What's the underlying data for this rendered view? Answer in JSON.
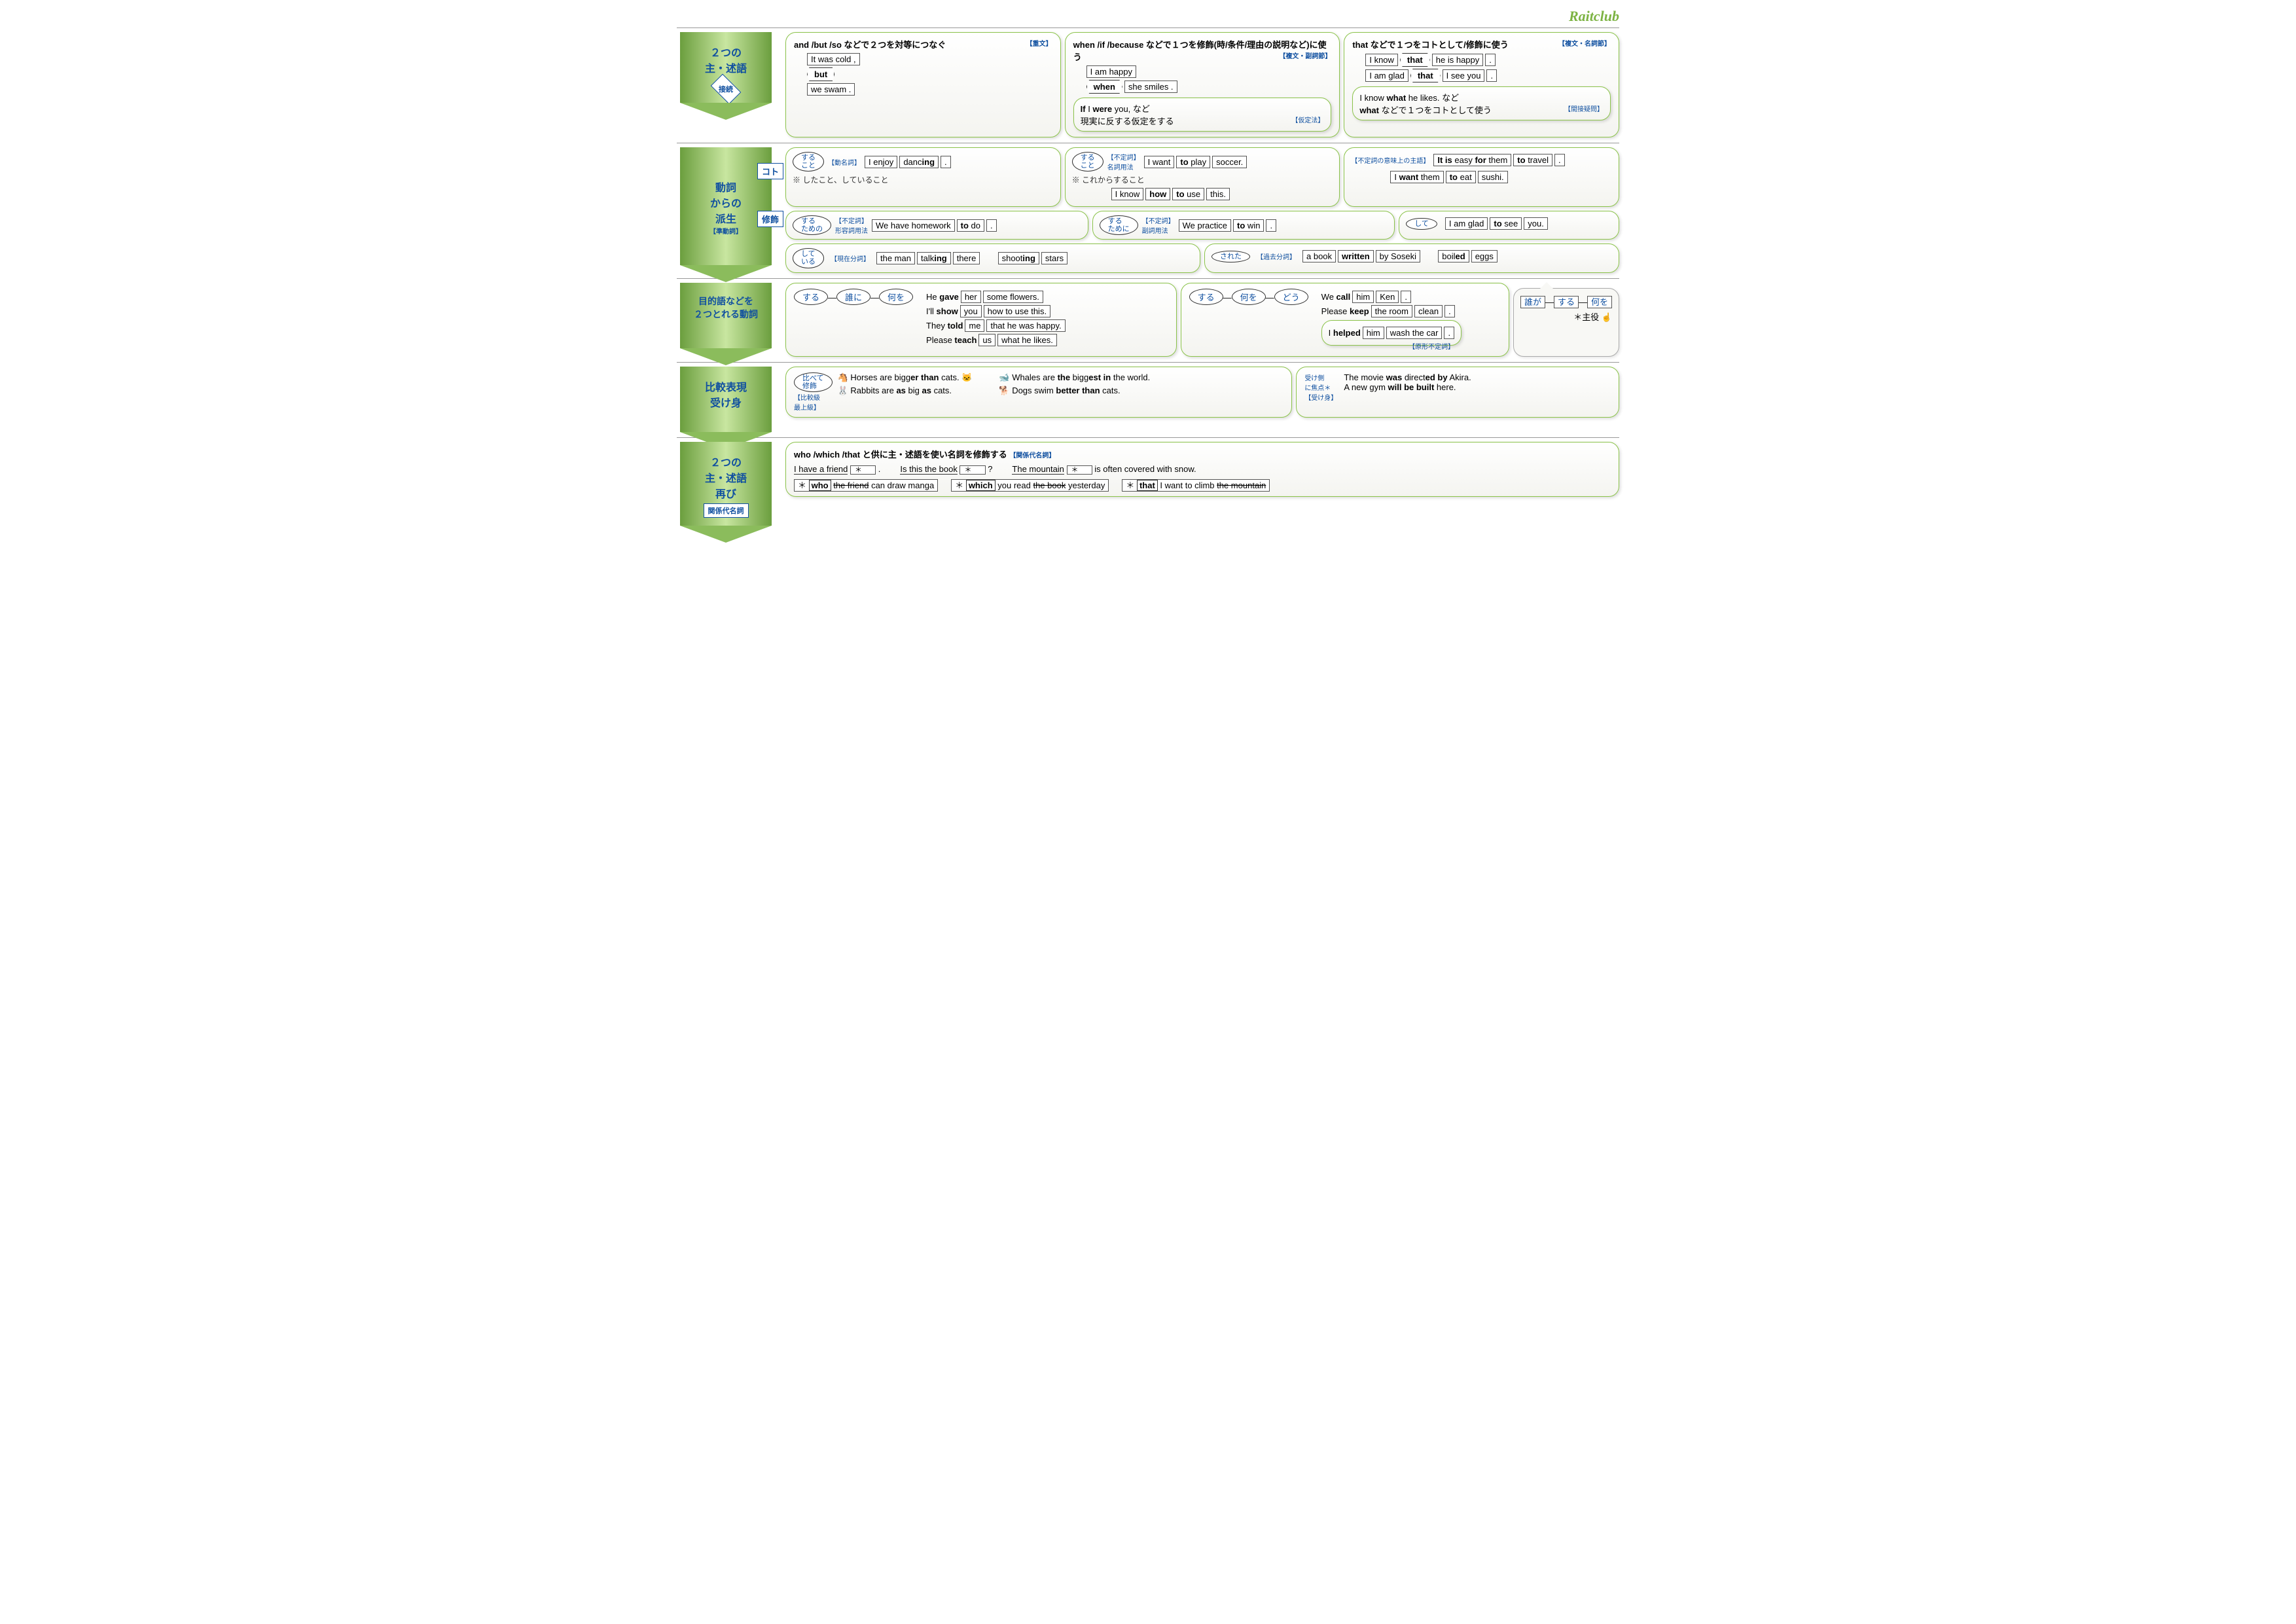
{
  "logo": "Raitclub",
  "colors": {
    "accent_green": "#8bc34a",
    "accent_blue": "#1050a0",
    "arrow_grad_mid": "#c8e6a0"
  },
  "sections": [
    {
      "id": "s1",
      "arrow_title": "２つの\n主・述語",
      "arrow_badge": "接続",
      "cards": [
        {
          "title": "and /but /so などで２つを対等につなぐ",
          "tag": "【重文】",
          "examples": [
            [
              "It was cold ,"
            ],
            [
              "<hex>but</hex>"
            ],
            [
              "we swam ."
            ]
          ]
        },
        {
          "title": "when /if /because などで１つを修飾(時/条件/理由の説明など)に使う",
          "tag": "【複文・副詞節】",
          "examples": [
            [
              "I am happy"
            ],
            [
              "<hex>when</hex>",
              "she smiles ."
            ]
          ],
          "sub": {
            "text": "If I were you, など\n現実に反する仮定をする",
            "tag": "【仮定法】"
          }
        },
        {
          "title": "that などで１つをコトとして/修飾に使う",
          "tag": "【複文・名詞節】",
          "examples": [
            [
              "I know",
              "<hex>that</hex>",
              "he is happy",
              "."
            ],
            [
              "I am glad",
              "<hex>that</hex>",
              "I see you",
              "."
            ]
          ],
          "sub": {
            "text": "I know what he likes. など\nwhat などで１つをコトとして使う",
            "tag": "【間接疑問】"
          }
        }
      ]
    },
    {
      "id": "s2",
      "arrow_title": "動詞\nからの\n派生",
      "arrow_sub": "【準動詞】",
      "side_boxes": [
        "コト",
        "修飾"
      ],
      "row1": [
        {
          "oval": "する\nこと",
          "tag": "【動名詞】",
          "ex": [
            "I enjoy",
            "danc<b>ing</b>",
            "."
          ],
          "note": "※ したこと、していること"
        },
        {
          "oval": "する\nこと",
          "tag": "【不定詞】\n名詞用法",
          "ex": [
            "I want",
            "<b>to</b> play",
            "soccer."
          ],
          "note": "※ これからすること",
          "ex2": [
            "I know",
            "<b>how</b>",
            "<b>to</b> use",
            "this."
          ]
        },
        {
          "tag": "【不定詞の意味上の主語】",
          "ex": [
            "<b>It is</b> easy <b>for</b> them",
            "<b>to</b> travel",
            "."
          ],
          "ex2": [
            "I <b>want</b> them",
            "<b>to</b> eat",
            "sushi."
          ]
        }
      ],
      "row2": [
        {
          "oval": "する\nための",
          "tag": "【不定詞】\n形容詞用法",
          "ex": [
            "We have homework",
            "<b>to</b> do",
            "."
          ]
        },
        {
          "oval": "する\nために",
          "tag": "【不定詞】\n副詞用法",
          "ex": [
            "We practice",
            "<b>to</b> win",
            "."
          ]
        },
        {
          "oval": "して",
          "ex": [
            "I am glad",
            "<b>to</b> see",
            "you."
          ]
        }
      ],
      "row3": [
        {
          "oval": "して\nいる",
          "tag": "【現在分詞】",
          "ex": [
            "the man",
            "talk<b>ing</b>",
            "there"
          ],
          "ex2": [
            "shoot<b>ing</b>",
            "stars"
          ]
        },
        {
          "oval": "された",
          "tag": "【過去分詞】",
          "ex": [
            "a book",
            "<b>written</b>",
            "by Soseki"
          ],
          "ex2": [
            "boil<b>ed</b>",
            "eggs"
          ]
        }
      ]
    },
    {
      "id": "s3",
      "arrow_title": "目的語などを\n２つとれる動詞",
      "left": {
        "ovals": [
          "する",
          "誰に",
          "何を"
        ],
        "lines": [
          [
            "He <b>gave</b>",
            "her",
            "some flowers."
          ],
          [
            "I'll <b>show</b>",
            "you",
            "how to use this."
          ],
          [
            "They <b>told</b>",
            "me",
            "that he was happy."
          ],
          [
            "Please <b>teach</b>",
            "us",
            "what he likes."
          ]
        ]
      },
      "right": {
        "ovals": [
          "する",
          "何を",
          "どう"
        ],
        "lines": [
          [
            "We <b>call</b>",
            "him",
            "Ken",
            "."
          ],
          [
            "Please <b>keep</b>",
            "the room",
            "clean",
            "."
          ]
        ],
        "sub": {
          "line": [
            "I <b>helped</b>",
            "him",
            "wash the car",
            "."
          ],
          "tag": "【原形不定詞】"
        }
      },
      "svo": {
        "labels": [
          "誰が",
          "する",
          "何を"
        ],
        "note": "＊主役 ☝"
      }
    },
    {
      "id": "s4",
      "arrow_title": "比較表現\n受け身",
      "comp": {
        "oval": "比べて\n修飾",
        "tag": "【比較級\n最上級】",
        "lines": [
          "🐴 Horses are bigg<b>er than</b> cats. 🐱",
          "🐋 Whales are <b>the</b> bigg<b>est in</b> the world.",
          "🐰 Rabbits are <b>as</b> big <b>as</b> cats.",
          "🐕 Dogs swim <b>better than</b> cats."
        ]
      },
      "passive": {
        "label": "受け側\nに焦点＊",
        "tag": "【受け身】",
        "lines": [
          "The movie <b>was</b> direct<b>ed by</b> Akira.",
          "A new gym <b>will be built</b> here."
        ]
      }
    },
    {
      "id": "s5",
      "arrow_title": "２つの\n主・述語\n再び",
      "arrow_box": "関係代名詞",
      "title": "who /which /that と供に主・述語を使い名詞を修飾する",
      "tag": "【関係代名詞】",
      "top_exs": [
        [
          "I have a friend",
          "*",
          "."
        ],
        [
          "Is this the book",
          "*",
          "?"
        ],
        [
          "The mountain",
          "*",
          "is often covered with snow."
        ]
      ],
      "bot_exs": [
        [
          "*",
          "who",
          "the friend",
          "can draw manga"
        ],
        [
          "*",
          "which",
          "you read",
          "the book",
          "yesterday"
        ],
        [
          "*",
          "that",
          "I want to climb",
          "the mountain"
        ]
      ]
    }
  ]
}
